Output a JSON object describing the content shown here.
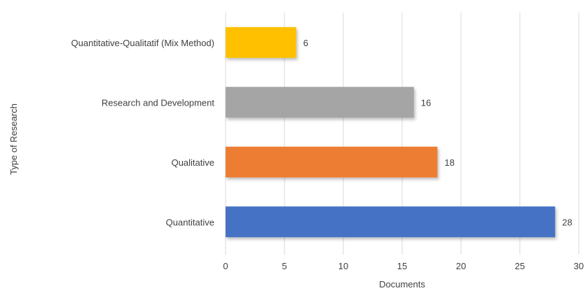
{
  "chart_data": {
    "type": "bar",
    "orientation": "horizontal",
    "categories": [
      "Quantitative",
      "Qualitative",
      "Research and Development",
      "Quantitative-Qualitatif (Mix Method)"
    ],
    "values": [
      28,
      18,
      16,
      6
    ],
    "colors": [
      "#4472c4",
      "#ed7d31",
      "#a5a5a5",
      "#ffc000"
    ],
    "title": "",
    "xlabel": "Documents",
    "ylabel": "Type of Research",
    "xlim": [
      0,
      30
    ],
    "xticks": [
      0,
      5,
      10,
      15,
      20,
      25,
      30
    ],
    "grid": true,
    "legend": "none",
    "data_labels": true
  }
}
